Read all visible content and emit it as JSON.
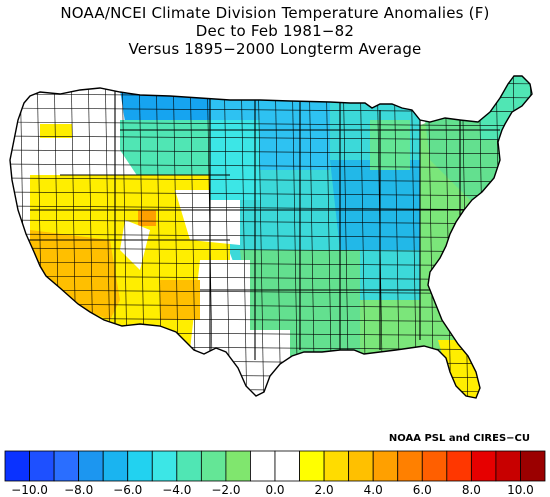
{
  "title": {
    "line1": "NOAA/NCEI Climate Division Temperature Anomalies (F)",
    "line2": "Dec to Feb 1981−82",
    "line3": "Versus 1895−2000 Longterm Average"
  },
  "credit": "NOAA PSL and CIRES−CU",
  "map": {
    "land_fill_default": "#ffffff",
    "boundary_color": "#000000",
    "regions": [
      {
        "name": "northern-plains-cold-core",
        "anomaly": -6.0,
        "color": "#16a4f0"
      },
      {
        "name": "upper-midwest-core",
        "anomaly": -5.0,
        "color": "#2ec2f2"
      },
      {
        "name": "central-plains",
        "anomaly": -4.0,
        "color": "#3cd9d9"
      },
      {
        "name": "great-lakes-ohio-valley",
        "anomaly": -5.5,
        "color": "#22b8e8"
      },
      {
        "name": "southern-plains-south",
        "anomaly": -2.5,
        "color": "#63e08f"
      },
      {
        "name": "northeast",
        "anomaly": -2.5,
        "color": "#63e08f"
      },
      {
        "name": "southeast-atlantic",
        "anomaly": -2.0,
        "color": "#7be67a"
      },
      {
        "name": "florida",
        "anomaly": 1.5,
        "color": "#ffee00"
      },
      {
        "name": "desert-southwest",
        "anomaly": 2.0,
        "color": "#ffdd00"
      },
      {
        "name": "california-south",
        "anomaly": 3.0,
        "color": "#ffbf00"
      },
      {
        "name": "great-basin",
        "anomaly": 1.5,
        "color": "#ffee00"
      },
      {
        "name": "mountain-west-neutral",
        "anomaly": 0.0,
        "color": "#ffffff"
      }
    ]
  },
  "legend": {
    "colors": [
      "#0a32ff",
      "#1e50ff",
      "#2a6eff",
      "#1c96f0",
      "#1ab4f0",
      "#22d2f0",
      "#3ce6e6",
      "#50e6b4",
      "#64e696",
      "#80e66e",
      "#ffffff",
      "#ffffff",
      "#ffff00",
      "#ffdc00",
      "#ffc000",
      "#ffa000",
      "#ff8000",
      "#ff5f00",
      "#ff3700",
      "#e60000",
      "#c80000",
      "#9b0000"
    ],
    "tick_labels": [
      "−10.0",
      "−8.0",
      "−6.0",
      "−4.0",
      "−2.0",
      "0.0",
      "2.0",
      "4.0",
      "6.0",
      "8.0",
      "10.0"
    ],
    "min": -10.0,
    "max": 10.0
  }
}
